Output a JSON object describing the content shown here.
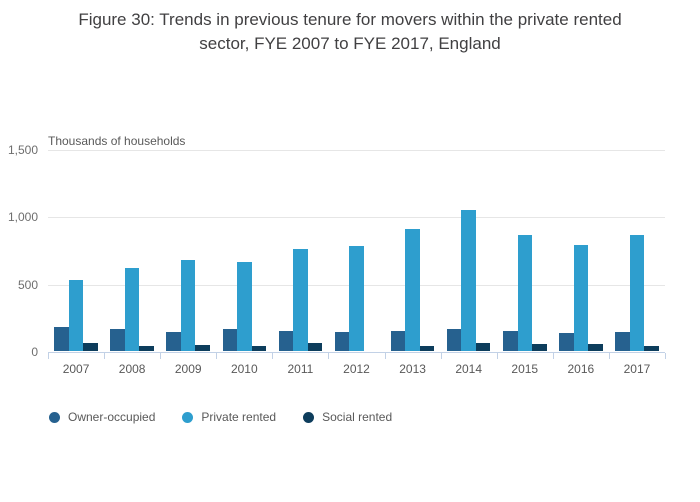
{
  "title": {
    "lines": [
      "Figure 30: Trends in previous tenure for movers within the private rented",
      "sector, FYE 2007 to FYE 2017, England"
    ]
  },
  "chart_data": {
    "type": "bar",
    "title": "Figure 30: Trends in previous tenure for movers within the private rented sector, FYE 2007 to FYE 2017, England",
    "axis_unit_label": "Thousands of households",
    "xlabel": "",
    "ylabel": "Thousands of households",
    "categories": [
      "2007",
      "2008",
      "2009",
      "2010",
      "2011",
      "2012",
      "2013",
      "2014",
      "2015",
      "2016",
      "2017"
    ],
    "series": [
      {
        "name": "Owner-occupied",
        "color": "#26618F",
        "values": [
          177,
          160,
          140,
          165,
          152,
          143,
          150,
          167,
          145,
          132,
          138
        ]
      },
      {
        "name": "Private rented",
        "color": "#2E9ECE",
        "values": [
          530,
          620,
          678,
          658,
          756,
          776,
          903,
          1046,
          860,
          785,
          860
        ]
      },
      {
        "name": "Social rented",
        "color": "#0D3D5C",
        "values": [
          60,
          38,
          45,
          40,
          63,
          0,
          38,
          63,
          55,
          49,
          35
        ]
      }
    ],
    "ylim": [
      0,
      1500
    ],
    "yticks": [
      0,
      500,
      1000,
      1500
    ],
    "ytick_labels": [
      "0",
      "500",
      "1,000",
      "1,500"
    ],
    "grid": true,
    "legend_position": "bottom"
  },
  "colors": {
    "title_text": "#414042",
    "axis_text": "#595959",
    "gridline": "#e6e6e6",
    "axis_line": "#c2d1e6",
    "background": "#ffffff"
  }
}
